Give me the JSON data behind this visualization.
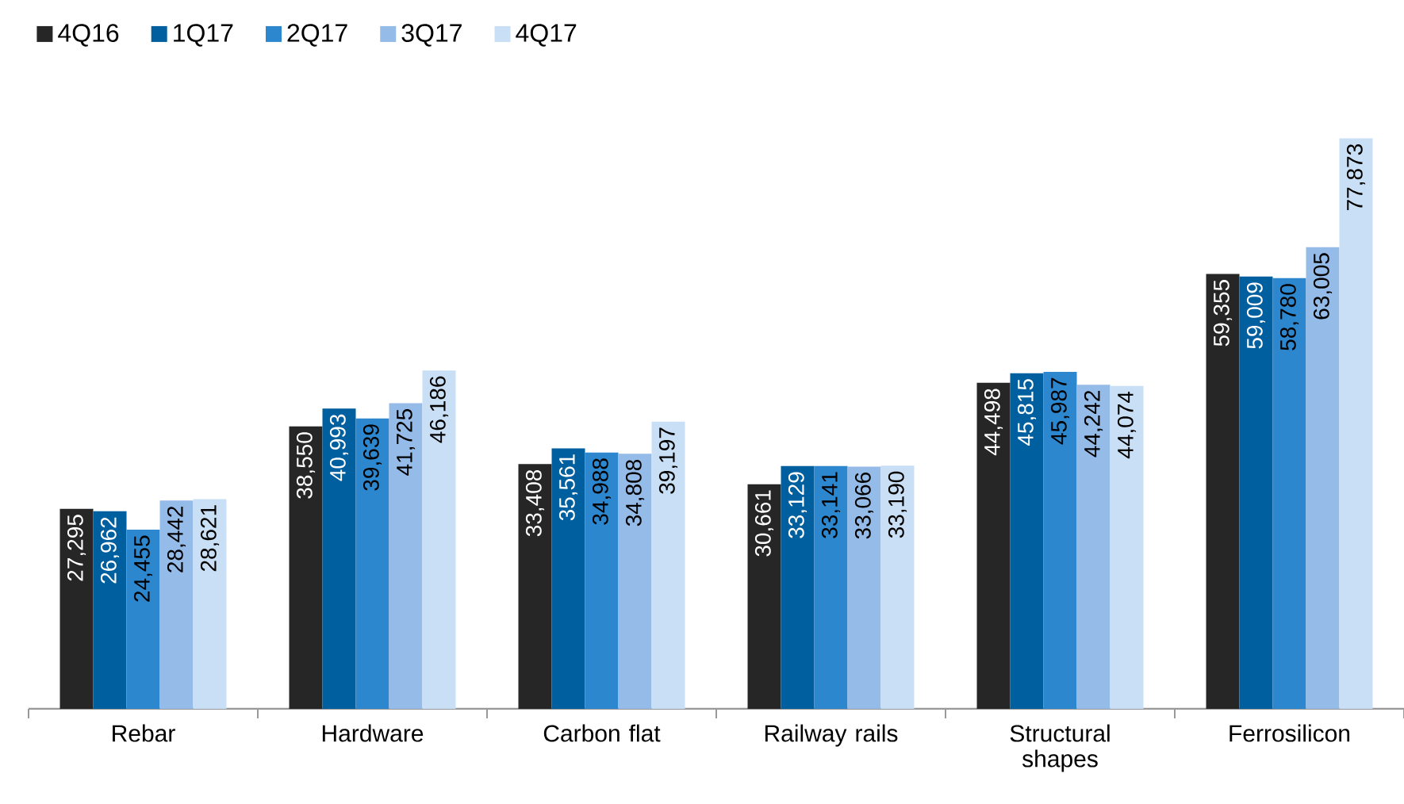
{
  "chart_data": {
    "type": "bar",
    "categories": [
      "Rebar",
      "Hardware",
      "Carbon flat",
      "Railway rails",
      "Structural shapes",
      "Ferrosilicon"
    ],
    "legend": "top left",
    "series": [
      {
        "name": "4Q16",
        "color": "#262626",
        "values": [
          27295,
          38550,
          33408,
          30661,
          44498,
          59355
        ],
        "value_labels": [
          "27,295",
          "38,550",
          "33,408",
          "30,661",
          "44,498",
          "59,355"
        ]
      },
      {
        "name": "1Q17",
        "color": "#005f9e",
        "values": [
          26962,
          40993,
          35561,
          33129,
          45815,
          59009
        ],
        "value_labels": [
          "26,962",
          "40,993",
          "35,561",
          "33,129",
          "45,815",
          "59,009"
        ]
      },
      {
        "name": "2Q17",
        "color": "#2d87cf",
        "values": [
          24455,
          39639,
          34988,
          33141,
          45987,
          58780
        ],
        "value_labels": [
          "24,455",
          "39,639",
          "34,988",
          "33,141",
          "45,987",
          "58,780"
        ]
      },
      {
        "name": "3Q17",
        "color": "#95bbe8",
        "values": [
          28442,
          41725,
          34808,
          33066,
          44242,
          63005
        ],
        "value_labels": [
          "28,442",
          "41,725",
          "34,808",
          "33,066",
          "44,242",
          "63,005"
        ]
      },
      {
        "name": "4Q17",
        "color": "#c9dff5",
        "values": [
          28621,
          46186,
          39197,
          33190,
          44074,
          77873
        ],
        "value_labels": [
          "28,621",
          "46,186",
          "39,197",
          "33,190",
          "44,074",
          "77,873"
        ]
      }
    ]
  }
}
